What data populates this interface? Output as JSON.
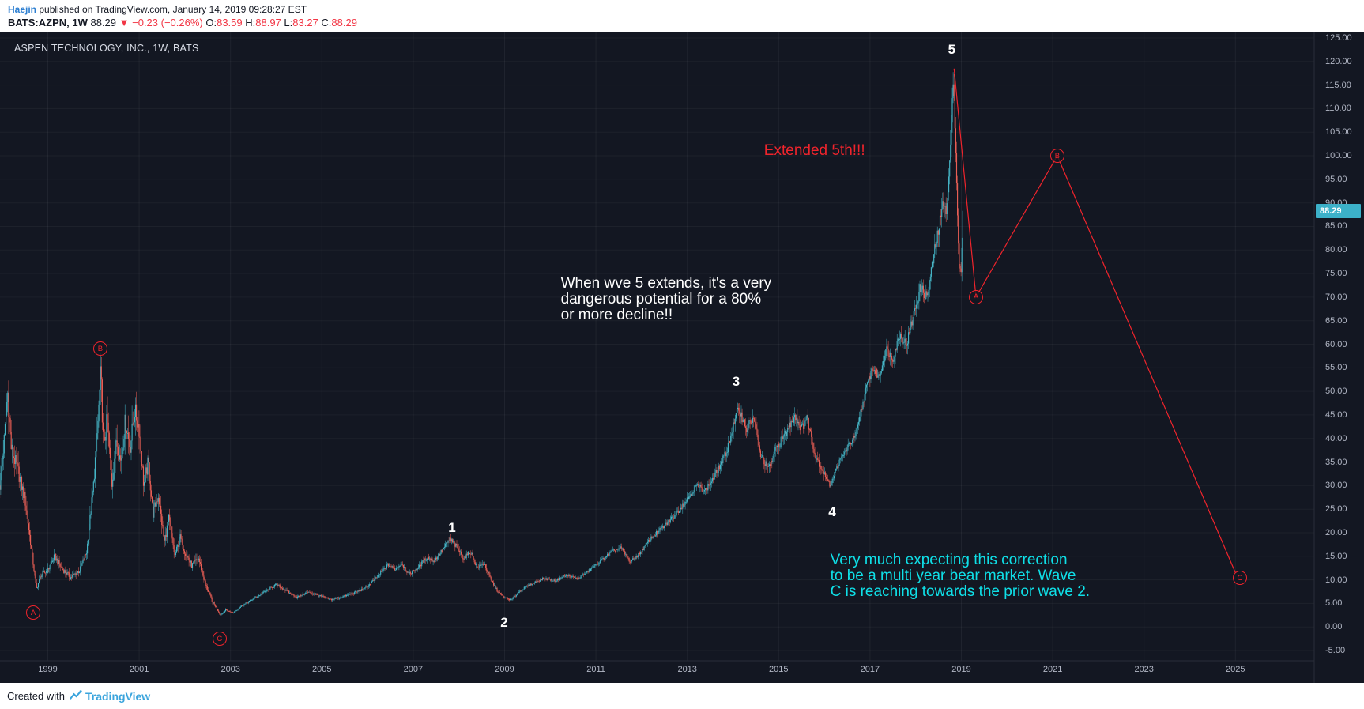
{
  "header": {
    "published_line": [
      {
        "text": "Haejin",
        "color": "#2d7fd1",
        "bold": true,
        "name": "author-link",
        "interactable": true
      },
      {
        "text": " published on TradingView.com, January 14, 2019 09:28:27 EST",
        "color": "#131722",
        "name": "published-info"
      }
    ],
    "symbol_line": [
      {
        "text": "BATS:AZPN, 1W ",
        "color": "#131722",
        "bold": true,
        "name": "symbol-name"
      },
      {
        "text": "88.29 ",
        "color": "#131722",
        "name": "last-price"
      },
      {
        "text": "▼ −0.23 (−0.26%) ",
        "color": "#f23645",
        "name": "price-change"
      },
      {
        "text": "O:",
        "color": "#131722",
        "name": "open-label"
      },
      {
        "text": "83.59 ",
        "color": "#f23645",
        "name": "open-value"
      },
      {
        "text": "H:",
        "color": "#131722",
        "name": "high-label"
      },
      {
        "text": "88.97 ",
        "color": "#f23645",
        "name": "high-value"
      },
      {
        "text": "L:",
        "color": "#131722",
        "name": "low-label"
      },
      {
        "text": "83.27 ",
        "color": "#f23645",
        "name": "low-value"
      },
      {
        "text": "C:",
        "color": "#131722",
        "name": "close-label"
      },
      {
        "text": "88.29",
        "color": "#f23645",
        "name": "close-value"
      }
    ]
  },
  "chart": {
    "title": "ASPEN TECHNOLOGY, INC., 1W, BATS",
    "bg": "#131722",
    "up_color": "#45b5c6",
    "down_color": "#ec5f55",
    "projection_color": "#f0242c",
    "wave_red": "#f0242c",
    "last_price_label": "88.29",
    "last_price_tag_color": "#3cb1c9"
  },
  "chart_data": {
    "type": "candlestick",
    "symbol": "BATS:AZPN",
    "timeframe": "1W",
    "title": "ASPEN TECHNOLOGY, INC., 1W, BATS",
    "y_axis": {
      "min": -5,
      "max": 125,
      "step": 5
    },
    "y_axis_labels": [
      "125.00",
      "120.00",
      "115.00",
      "110.00",
      "105.00",
      "100.00",
      "95.00",
      "90.00",
      "85.00",
      "80.00",
      "75.00",
      "70.00",
      "65.00",
      "60.00",
      "55.00",
      "50.00",
      "45.00",
      "40.00",
      "35.00",
      "30.00",
      "25.00",
      "20.00",
      "15.00",
      "10.00",
      "5.00",
      "0.00",
      "-5.00"
    ],
    "x_axis_labels": [
      "1999",
      "2001",
      "2003",
      "2005",
      "2007",
      "2009",
      "2011",
      "2013",
      "2015",
      "2017",
      "2019",
      "2021",
      "2023",
      "2025"
    ],
    "last_bar": {
      "open": 83.59,
      "high": 88.97,
      "low": 83.27,
      "close": 88.29,
      "change": -0.23,
      "change_pct": -0.26
    },
    "weeks_start": 1997.95,
    "weeks_end": 2019.05,
    "price_path_keyframes": [
      [
        1997.95,
        30
      ],
      [
        1998.05,
        40
      ],
      [
        1998.12,
        50
      ],
      [
        1998.2,
        38
      ],
      [
        1998.35,
        33
      ],
      [
        1998.5,
        27
      ],
      [
        1998.62,
        18
      ],
      [
        1998.75,
        8
      ],
      [
        1998.85,
        11
      ],
      [
        1999.0,
        12
      ],
      [
        1999.15,
        15
      ],
      [
        1999.3,
        12.5
      ],
      [
        1999.5,
        10.5
      ],
      [
        1999.7,
        12
      ],
      [
        1999.85,
        16
      ],
      [
        2000.0,
        30
      ],
      [
        2000.1,
        44
      ],
      [
        2000.16,
        54
      ],
      [
        2000.22,
        38
      ],
      [
        2000.3,
        44
      ],
      [
        2000.4,
        30
      ],
      [
        2000.5,
        40
      ],
      [
        2000.6,
        35
      ],
      [
        2000.7,
        44
      ],
      [
        2000.8,
        38
      ],
      [
        2000.9,
        46
      ],
      [
        2001.0,
        42
      ],
      [
        2001.1,
        30
      ],
      [
        2001.2,
        35
      ],
      [
        2001.3,
        24
      ],
      [
        2001.42,
        28
      ],
      [
        2001.55,
        18
      ],
      [
        2001.65,
        23
      ],
      [
        2001.78,
        15
      ],
      [
        2001.9,
        19
      ],
      [
        2002.0,
        16
      ],
      [
        2002.15,
        13
      ],
      [
        2002.3,
        14.5
      ],
      [
        2002.45,
        9
      ],
      [
        2002.6,
        5.5
      ],
      [
        2002.78,
        2.6
      ],
      [
        2002.9,
        3.6
      ],
      [
        2003.05,
        3
      ],
      [
        2003.25,
        4.5
      ],
      [
        2003.5,
        6
      ],
      [
        2003.75,
        7.5
      ],
      [
        2004.0,
        9
      ],
      [
        2004.2,
        7.8
      ],
      [
        2004.45,
        6.3
      ],
      [
        2004.7,
        7.4
      ],
      [
        2004.95,
        6.6
      ],
      [
        2005.2,
        5.8
      ],
      [
        2005.45,
        6.4
      ],
      [
        2005.7,
        7.2
      ],
      [
        2005.95,
        8.2
      ],
      [
        2006.2,
        10.5
      ],
      [
        2006.45,
        13.2
      ],
      [
        2006.6,
        12.2
      ],
      [
        2006.75,
        13.5
      ],
      [
        2006.9,
        11.2
      ],
      [
        2007.1,
        12.5
      ],
      [
        2007.3,
        14.8
      ],
      [
        2007.45,
        14
      ],
      [
        2007.6,
        15.8
      ],
      [
        2007.8,
        18.6
      ],
      [
        2007.95,
        17
      ],
      [
        2008.1,
        14.5
      ],
      [
        2008.25,
        16
      ],
      [
        2008.4,
        12.5
      ],
      [
        2008.55,
        13.5
      ],
      [
        2008.7,
        10
      ],
      [
        2008.85,
        7.5
      ],
      [
        2009.0,
        6.2
      ],
      [
        2009.15,
        5.7
      ],
      [
        2009.35,
        7.8
      ],
      [
        2009.6,
        9.2
      ],
      [
        2009.85,
        10.3
      ],
      [
        2010.1,
        9.8
      ],
      [
        2010.35,
        11
      ],
      [
        2010.6,
        10.2
      ],
      [
        2010.85,
        12
      ],
      [
        2011.1,
        14
      ],
      [
        2011.35,
        16
      ],
      [
        2011.55,
        16.8
      ],
      [
        2011.75,
        13.8
      ],
      [
        2011.95,
        15.5
      ],
      [
        2012.2,
        18.8
      ],
      [
        2012.45,
        21
      ],
      [
        2012.7,
        23.5
      ],
      [
        2012.95,
        26.5
      ],
      [
        2013.2,
        30
      ],
      [
        2013.4,
        29
      ],
      [
        2013.6,
        32
      ],
      [
        2013.85,
        37
      ],
      [
        2014.05,
        44
      ],
      [
        2014.12,
        46.5
      ],
      [
        2014.3,
        42
      ],
      [
        2014.45,
        44.5
      ],
      [
        2014.6,
        36.5
      ],
      [
        2014.78,
        33.5
      ],
      [
        2014.95,
        38
      ],
      [
        2015.15,
        41
      ],
      [
        2015.35,
        45
      ],
      [
        2015.5,
        42
      ],
      [
        2015.62,
        44.5
      ],
      [
        2015.8,
        36.5
      ],
      [
        2016.0,
        32.5
      ],
      [
        2016.12,
        30
      ],
      [
        2016.3,
        34.5
      ],
      [
        2016.5,
        38
      ],
      [
        2016.7,
        41
      ],
      [
        2016.9,
        50
      ],
      [
        2017.05,
        55
      ],
      [
        2017.2,
        53
      ],
      [
        2017.35,
        59
      ],
      [
        2017.5,
        57
      ],
      [
        2017.65,
        62
      ],
      [
        2017.8,
        60
      ],
      [
        2017.95,
        66
      ],
      [
        2018.1,
        72
      ],
      [
        2018.25,
        70
      ],
      [
        2018.4,
        79
      ],
      [
        2018.55,
        87
      ],
      [
        2018.62,
        91
      ],
      [
        2018.68,
        88
      ],
      [
        2018.74,
        98
      ],
      [
        2018.79,
        108
      ],
      [
        2018.83,
        118
      ],
      [
        2018.87,
        103
      ],
      [
        2018.91,
        90
      ],
      [
        2018.95,
        77
      ],
      [
        2018.99,
        74
      ],
      [
        2019.02,
        83
      ],
      [
        2019.05,
        88.29
      ]
    ],
    "elliott_waves": {
      "numbers": [
        {
          "label": "1",
          "year": 2007.85,
          "price": 21.0
        },
        {
          "label": "2",
          "year": 2008.99,
          "price": 0.9
        },
        {
          "label": "3",
          "year": 2014.07,
          "price": 52.0
        },
        {
          "label": "4",
          "year": 2016.17,
          "price": 24.3
        },
        {
          "label": "5",
          "year": 2018.79,
          "price": 122.5
        }
      ],
      "circled": [
        {
          "label": "A",
          "year": 1998.68,
          "price": 3.0
        },
        {
          "label": "B",
          "year": 2000.15,
          "price": 59.0
        },
        {
          "label": "C",
          "year": 2002.76,
          "price": -2.5
        }
      ]
    },
    "projection": {
      "points": [
        [
          2018.84,
          118.5
        ],
        [
          2019.32,
          70.0
        ],
        [
          2021.1,
          100.0
        ],
        [
          2025.0,
          11.5
        ]
      ],
      "circled": [
        {
          "label": "A",
          "year": 2019.32,
          "price": 70.0
        },
        {
          "label": "B",
          "year": 2021.1,
          "price": 100.0
        },
        {
          "label": "C",
          "year": 2025.1,
          "price": 10.4
        }
      ]
    }
  },
  "annotations": [
    {
      "id": "extended-5th",
      "lines": [
        "Extended 5th!!!"
      ],
      "color": "#f0242c",
      "year": 2014.68,
      "price": 101.0,
      "align": "middle",
      "font_size": 19
    },
    {
      "id": "wave5-warning",
      "lines": [
        "When wve 5 extends, it's a very",
        "dangerous potential for a 80%",
        "or more decline!!"
      ],
      "color": "#ffffff",
      "year": 2010.23,
      "price": 74.5,
      "align": "top",
      "font_size": 19
    },
    {
      "id": "bear-market-note",
      "lines": [
        "Very much expecting this correction",
        "to be a multi year bear market. Wave",
        "C is reaching towards the prior wave 2."
      ],
      "color": "#0fe0e8",
      "year": 2016.13,
      "price": 15.8,
      "align": "top",
      "font_size": 19
    }
  ],
  "footer": {
    "created_with": "Created with",
    "brand": "TradingView"
  }
}
